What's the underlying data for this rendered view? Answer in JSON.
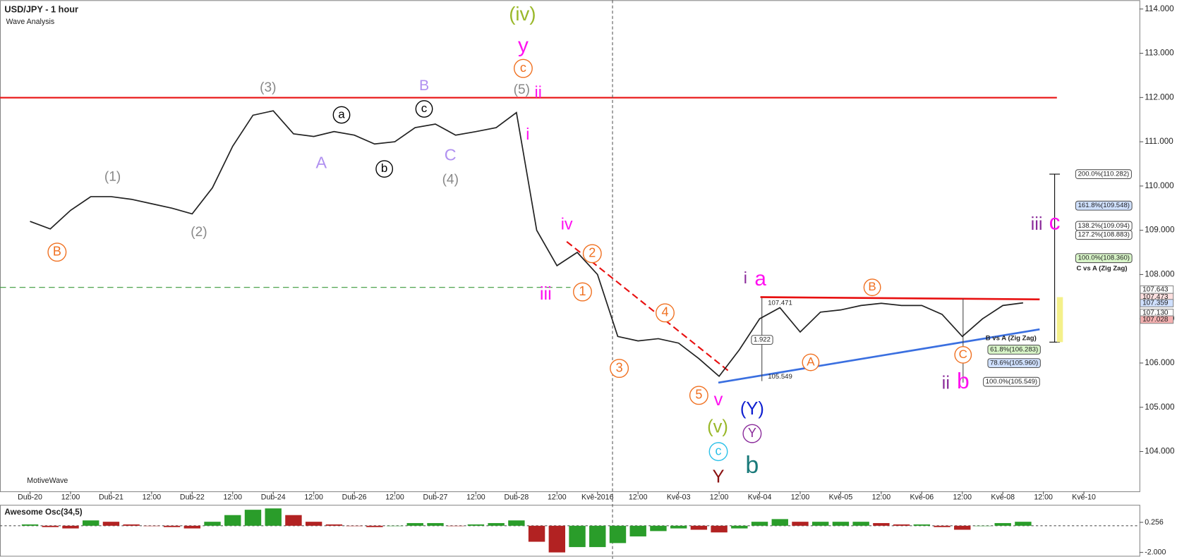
{
  "chart_data": {
    "type": "line",
    "title": "USD/JPY - 1 hour",
    "subtitle": "Wave Analysis",
    "watermark": "MotiveWave",
    "categories": [
      "Dub-20",
      null,
      "12:00",
      null,
      "Dub-21",
      null,
      "12:00",
      null,
      "Dub-22",
      null,
      "12:00",
      null,
      "Dub-24",
      null,
      "12:00",
      null,
      "Dub-26",
      null,
      "12:00",
      null,
      "Dub-27",
      null,
      "12:00",
      null,
      "Dub-28",
      null,
      "12:00",
      null,
      "Kvě-2016",
      null,
      "12:00",
      null,
      "Kvě-03",
      null,
      "12:00",
      null,
      "Kvě-04",
      null,
      "12:00",
      null,
      "Kvě-05",
      null,
      "12:00",
      null,
      "Kvě-06",
      null,
      "12:00",
      null,
      "Kvě-08",
      null,
      "12:00",
      null,
      "Kvě-10"
    ],
    "series": [
      {
        "name": "USD/JPY",
        "color": "#222222",
        "values": [
          109.2,
          109.03,
          109.45,
          109.76,
          109.76,
          109.7,
          109.6,
          109.5,
          109.37,
          109.96,
          110.9,
          111.6,
          111.7,
          111.18,
          111.12,
          111.23,
          111.15,
          110.95,
          111.0,
          111.32,
          111.4,
          111.15,
          111.23,
          111.32,
          111.66,
          109.0,
          108.2,
          108.5,
          108.0,
          106.6,
          106.5,
          106.55,
          106.45,
          106.1,
          105.7,
          106.3,
          107.0,
          107.25,
          106.7,
          107.15,
          107.2,
          107.3,
          107.35,
          107.3,
          107.3,
          107.1,
          106.6,
          107.0,
          107.3,
          107.36,
          null,
          null,
          null
        ]
      }
    ],
    "ylim": [
      103.1,
      114.2
    ],
    "yticks": [
      {
        "value": 104,
        "label": "104.000"
      },
      {
        "value": 105,
        "label": "105.000"
      },
      {
        "value": 106,
        "label": "106.000"
      },
      {
        "value": 107,
        "label": "107.000"
      },
      {
        "value": 108,
        "label": "108.000"
      },
      {
        "value": 109,
        "label": "109.000"
      },
      {
        "value": 110,
        "label": "110.000"
      },
      {
        "value": 111,
        "label": "111.000"
      },
      {
        "value": 112,
        "label": "112.000"
      },
      {
        "value": 113,
        "label": "113.000"
      },
      {
        "value": 114,
        "label": "114.000"
      }
    ],
    "price_labels": [
      "107.643",
      "107.473",
      "107.359",
      "107.130",
      "107.028"
    ],
    "wave_labels": [
      "(iv)",
      "y",
      "c",
      "(5)",
      "ii",
      "(3)",
      "B",
      "c",
      "a",
      "b",
      "A",
      "C",
      "(4)",
      "(1)",
      "(2)",
      "B",
      "i",
      "iv",
      "iii",
      "1",
      "2",
      "3",
      "4",
      "5",
      "v",
      "(v)",
      "c",
      "Y",
      "(Y)",
      "Y",
      "b",
      "i",
      "a",
      "A",
      "B",
      "C",
      "ii",
      "b",
      "iii",
      "c"
    ],
    "fib_labels": [
      "200.0%(110.282)",
      "161.8%(109.548)",
      "138.2%(109.094)",
      "127.2%(108.883)",
      "100.0%(108.360)",
      "C vs A (Zig Zag)",
      "B vs A (Zig Zag)",
      "61.8%(106.283)",
      "78.6%(105.960)",
      "100.0%(105.549)",
      "107.471",
      "1.922",
      "105.549"
    ],
    "oscillator": {
      "title": "Awesome Osc(34,5)",
      "values": [
        0.1,
        -0.1,
        -0.2,
        0.4,
        0.3,
        0.1,
        0,
        -0.1,
        -0.2,
        0.3,
        0.8,
        1.2,
        1.3,
        0.8,
        0.3,
        0.1,
        0,
        -0.1,
        0,
        0.2,
        0.2,
        0,
        0.1,
        0.2,
        0.4,
        -1.2,
        -2.0,
        -1.6,
        -1.6,
        -1.3,
        -0.8,
        -0.4,
        -0.2,
        -0.3,
        -0.5,
        -0.2,
        0.3,
        0.5,
        0.3,
        0.3,
        0.3,
        0.3,
        0.2,
        0.1,
        0.1,
        -0.1,
        -0.3,
        0,
        0.2,
        0.3,
        null,
        null,
        null
      ],
      "up_color": "#2a9d2a",
      "down_color": "#b22222",
      "ylim": [
        -2.2,
        1.4
      ],
      "yticks": [
        0.256,
        {
          "value": -2,
          "label": "-2.000"
        }
      ]
    }
  }
}
